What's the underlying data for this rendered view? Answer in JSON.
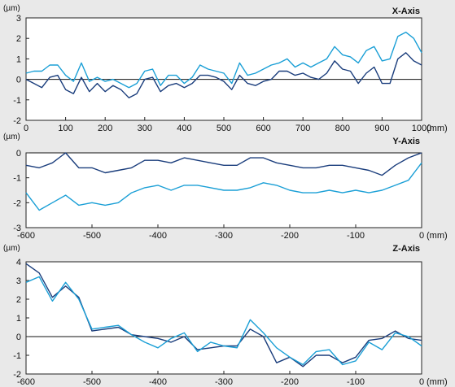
{
  "chart_data": [
    {
      "type": "line",
      "title": "X-Axis",
      "yunit": "(µm)",
      "xunit": "(mm)",
      "xlim": [
        0,
        1000
      ],
      "ylim": [
        -2,
        3
      ],
      "xticks": [
        0,
        100,
        200,
        300,
        400,
        500,
        600,
        700,
        800,
        900,
        1000
      ],
      "yticks": [
        3,
        2,
        1,
        0,
        -1,
        -2
      ],
      "x": [
        0,
        20,
        40,
        60,
        80,
        100,
        120,
        140,
        160,
        180,
        200,
        220,
        240,
        260,
        280,
        300,
        320,
        340,
        360,
        380,
        400,
        420,
        440,
        460,
        480,
        500,
        520,
        540,
        560,
        580,
        600,
        620,
        640,
        660,
        680,
        700,
        720,
        740,
        760,
        780,
        800,
        820,
        840,
        860,
        880,
        900,
        920,
        940,
        960,
        980,
        1000
      ],
      "series": [
        {
          "color": "#1a9fd6",
          "values": [
            0.3,
            0.4,
            0.4,
            0.7,
            0.7,
            0.2,
            -0.1,
            0.8,
            -0.1,
            0.1,
            -0.1,
            0.0,
            -0.2,
            -0.4,
            -0.2,
            0.4,
            0.5,
            -0.3,
            0.2,
            0.2,
            -0.2,
            0.1,
            0.7,
            0.5,
            0.4,
            0.3,
            -0.2,
            0.8,
            0.2,
            0.3,
            0.5,
            0.7,
            0.8,
            1.0,
            0.6,
            0.8,
            0.6,
            0.8,
            1.0,
            1.6,
            1.2,
            1.1,
            0.8,
            1.4,
            1.6,
            0.9,
            1.0,
            2.1,
            2.3,
            2.0,
            1.3
          ]
        },
        {
          "color": "#1a3d7c",
          "values": [
            0.0,
            -0.2,
            -0.4,
            0.1,
            0.2,
            -0.5,
            -0.7,
            0.1,
            -0.6,
            -0.2,
            -0.6,
            -0.3,
            -0.5,
            -0.9,
            -0.7,
            0.0,
            0.1,
            -0.6,
            -0.3,
            -0.2,
            -0.4,
            -0.2,
            0.2,
            0.2,
            0.1,
            -0.1,
            -0.5,
            0.2,
            -0.2,
            -0.3,
            -0.1,
            0.0,
            0.4,
            0.4,
            0.2,
            0.3,
            0.1,
            0.0,
            0.3,
            0.9,
            0.5,
            0.4,
            -0.2,
            0.3,
            0.6,
            -0.2,
            -0.2,
            1.0,
            1.3,
            0.9,
            0.7
          ]
        }
      ]
    },
    {
      "type": "line",
      "title": "Y-Axis",
      "yunit": "(µm)",
      "xunit": "(mm)",
      "xlim": [
        -600,
        0
      ],
      "ylim": [
        -3,
        0
      ],
      "xticks": [
        -600,
        -500,
        -400,
        -300,
        -200,
        -100,
        0
      ],
      "yticks": [
        0,
        -1,
        -2,
        -3
      ],
      "x": [
        -600,
        -580,
        -560,
        -540,
        -520,
        -500,
        -480,
        -460,
        -440,
        -420,
        -400,
        -380,
        -360,
        -340,
        -320,
        -300,
        -280,
        -260,
        -240,
        -220,
        -200,
        -180,
        -160,
        -140,
        -120,
        -100,
        -80,
        -60,
        -40,
        -20,
        0
      ],
      "series": [
        {
          "color": "#1a3d7c",
          "values": [
            -0.5,
            -0.6,
            -0.4,
            0.0,
            -0.6,
            -0.6,
            -0.8,
            -0.7,
            -0.6,
            -0.3,
            -0.3,
            -0.4,
            -0.2,
            -0.3,
            -0.4,
            -0.5,
            -0.5,
            -0.2,
            -0.2,
            -0.4,
            -0.5,
            -0.6,
            -0.6,
            -0.5,
            -0.5,
            -0.6,
            -0.7,
            -0.9,
            -0.5,
            -0.2,
            0.0
          ]
        },
        {
          "color": "#1a9fd6",
          "values": [
            -1.6,
            -2.3,
            -2.0,
            -1.7,
            -2.1,
            -2.0,
            -2.1,
            -2.0,
            -1.6,
            -1.4,
            -1.3,
            -1.5,
            -1.3,
            -1.3,
            -1.4,
            -1.5,
            -1.5,
            -1.4,
            -1.2,
            -1.3,
            -1.5,
            -1.6,
            -1.6,
            -1.5,
            -1.6,
            -1.5,
            -1.6,
            -1.5,
            -1.3,
            -1.1,
            -0.4
          ]
        }
      ]
    },
    {
      "type": "line",
      "title": "Z-Axis",
      "yunit": "(µm)",
      "xunit": "(mm)",
      "xlim": [
        -600,
        0
      ],
      "ylim": [
        -2,
        4
      ],
      "xticks": [
        -600,
        -500,
        -400,
        -300,
        -200,
        -100,
        0
      ],
      "yticks": [
        4,
        3,
        2,
        1,
        0,
        -1,
        -2
      ],
      "x": [
        -600,
        -580,
        -560,
        -540,
        -520,
        -500,
        -480,
        -460,
        -440,
        -420,
        -400,
        -380,
        -360,
        -340,
        -320,
        -300,
        -280,
        -260,
        -240,
        -220,
        -200,
        -180,
        -160,
        -140,
        -120,
        -100,
        -80,
        -60,
        -40,
        -20,
        0
      ],
      "series": [
        {
          "color": "#1a3d7c",
          "values": [
            3.9,
            3.4,
            2.1,
            2.7,
            2.1,
            0.3,
            0.4,
            0.5,
            0.1,
            0.0,
            -0.1,
            -0.3,
            0.0,
            -0.7,
            -0.6,
            -0.5,
            -0.5,
            0.4,
            0.0,
            -1.4,
            -1.1,
            -1.6,
            -1.0,
            -1.0,
            -1.4,
            -1.1,
            -0.2,
            -0.1,
            0.3,
            -0.1,
            -0.2
          ]
        },
        {
          "color": "#1a9fd6",
          "values": [
            2.9,
            3.2,
            1.9,
            2.9,
            2.0,
            0.4,
            0.5,
            0.6,
            0.1,
            -0.3,
            -0.6,
            -0.1,
            0.2,
            -0.8,
            -0.3,
            -0.5,
            -0.6,
            0.9,
            0.2,
            -0.6,
            -1.1,
            -1.5,
            -0.8,
            -0.7,
            -1.5,
            -1.3,
            -0.3,
            -0.7,
            0.2,
            0.0,
            -0.5
          ]
        }
      ]
    }
  ]
}
